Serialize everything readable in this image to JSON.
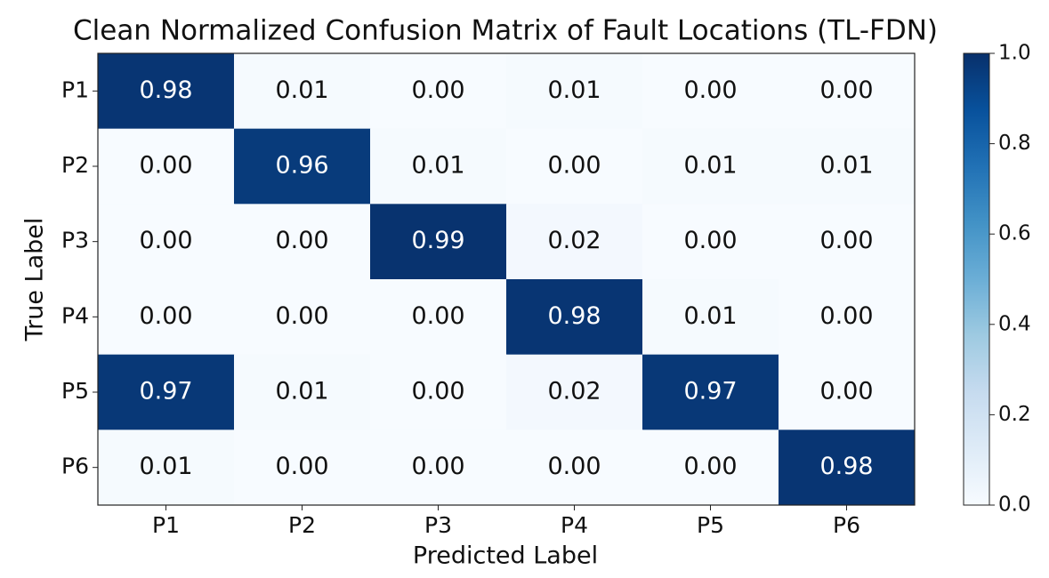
{
  "chart_data": {
    "type": "heatmap",
    "title": "Clean Normalized Confusion Matrix of Fault Locations (TL-FDN)",
    "xlabel": "Predicted Label",
    "ylabel": "True Label",
    "x_categories": [
      "P1",
      "P2",
      "P3",
      "P4",
      "P5",
      "P6"
    ],
    "y_categories": [
      "P1",
      "P2",
      "P3",
      "P4",
      "P5",
      "P6"
    ],
    "values": [
      [
        0.98,
        0.01,
        0,
        0.01,
        0,
        0
      ],
      [
        0,
        0.96,
        0.01,
        0,
        0.01,
        0.01
      ],
      [
        0,
        0,
        0.99,
        0.02,
        0,
        0
      ],
      [
        0,
        0,
        0,
        0.98,
        0.01,
        0
      ],
      [
        0.97,
        0.01,
        0,
        0.02,
        0.97,
        0
      ],
      [
        0.01,
        0,
        0,
        0,
        0,
        0.98
      ]
    ],
    "value_labels": [
      [
        "0.98",
        "0.01",
        "0.00",
        "0.01",
        "0.00",
        "0.00"
      ],
      [
        "0.00",
        "0.96",
        "0.01",
        "0.00",
        "0.01",
        "0.01"
      ],
      [
        "0.00",
        "0.00",
        "0.99",
        "0.02",
        "0.00",
        "0.00"
      ],
      [
        "0.00",
        "0.00",
        "0.00",
        "0.98",
        "0.01",
        "0.00"
      ],
      [
        "0.97",
        "0.01",
        "0.00",
        "0.02",
        "0.97",
        "0.00"
      ],
      [
        "0.01",
        "0.00",
        "0.00",
        "0.00",
        "0.00",
        "0.98"
      ]
    ],
    "colormap": "Blues",
    "clim": [
      0,
      1
    ],
    "cticks": [
      {
        "value": 0,
        "label": "0.0"
      },
      0.2,
      0.4,
      0.6,
      0.8,
      {
        "value": 1,
        "label": "1.0"
      }
    ]
  }
}
